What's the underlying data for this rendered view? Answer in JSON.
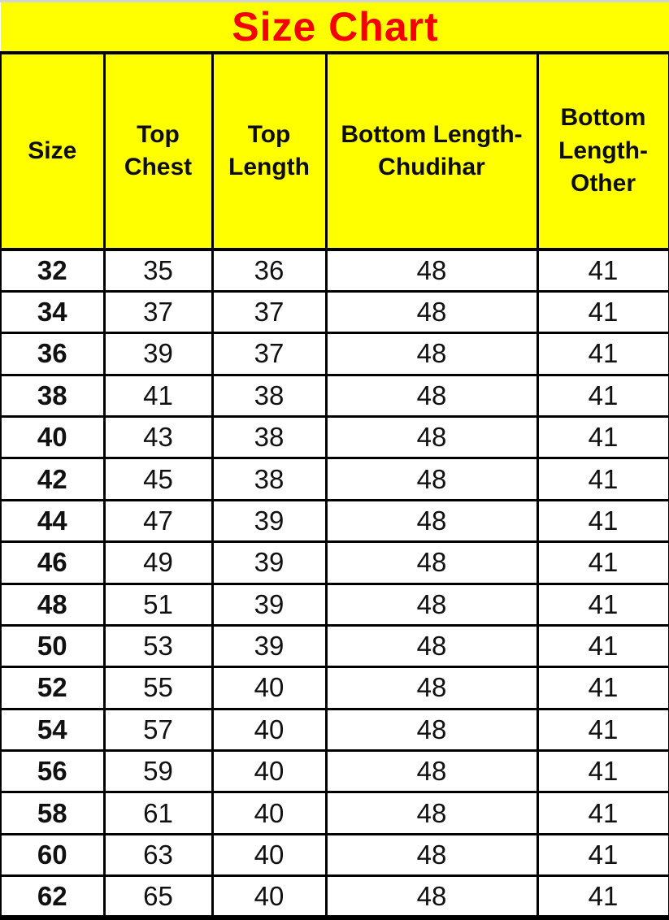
{
  "title": "Size Chart",
  "colors": {
    "header_bg": "#ffff00",
    "title_text": "#f40000",
    "border": "#000000",
    "row_bg": "#ffffff",
    "body_text": "#111111"
  },
  "chart_data": {
    "type": "table",
    "title": "Size Chart",
    "columns": [
      "Size",
      "Top Chest",
      "Top Length",
      "Bottom Length-Chudihar",
      "Bottom Length-Other"
    ],
    "rows": [
      [
        32,
        35,
        36,
        48,
        41
      ],
      [
        34,
        37,
        37,
        48,
        41
      ],
      [
        36,
        39,
        37,
        48,
        41
      ],
      [
        38,
        41,
        38,
        48,
        41
      ],
      [
        40,
        43,
        38,
        48,
        41
      ],
      [
        42,
        45,
        38,
        48,
        41
      ],
      [
        44,
        47,
        39,
        48,
        41
      ],
      [
        46,
        49,
        39,
        48,
        41
      ],
      [
        48,
        51,
        39,
        48,
        41
      ],
      [
        50,
        53,
        39,
        48,
        41
      ],
      [
        52,
        55,
        40,
        48,
        41
      ],
      [
        54,
        57,
        40,
        48,
        41
      ],
      [
        56,
        59,
        40,
        48,
        41
      ],
      [
        58,
        61,
        40,
        48,
        41
      ],
      [
        60,
        63,
        40,
        48,
        41
      ],
      [
        62,
        65,
        40,
        48,
        41
      ]
    ]
  }
}
